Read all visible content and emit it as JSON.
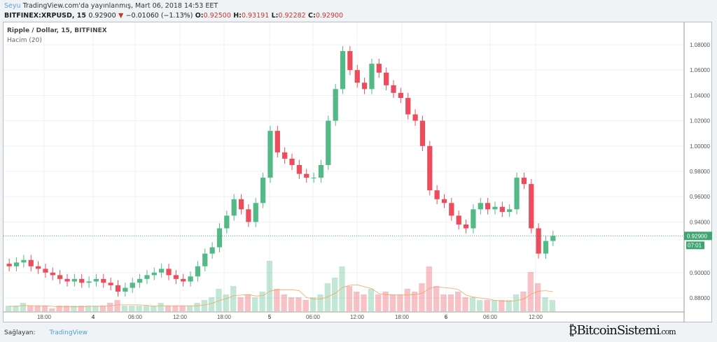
{
  "header": {
    "user": "Seyu",
    "published": "TradingView.com'da yayınlanmış, Mart 06, 2018 14:53 EET",
    "symbol": "BITFINEX:XRPUSD, 15",
    "last": "0.92900",
    "change": "−0.01060 (−1.13%)",
    "o_label": "O:",
    "o": "0.92500",
    "h_label": "H:",
    "h": "0.93191",
    "l_label": "L:",
    "l": "0.92282",
    "c_label": "C:",
    "c": "0.92900"
  },
  "legend": {
    "title": "Ripple / Dollar, 15, BITFINEX",
    "volume": "Hacim (20)"
  },
  "footer": {
    "provider": "Sağlayan:",
    "brand": "TradingView"
  },
  "watermark": {
    "text": "BitcoinSistemi",
    "sub": ".com"
  },
  "colors": {
    "up": "#53b987",
    "down": "#eb4d5c",
    "last_price": "#3da56f",
    "grid": "#eef0f3",
    "ma": "#f5a45a"
  },
  "chart_data": {
    "type": "candlestick",
    "yticks": [
      "1.08000",
      "1.06000",
      "1.04000",
      "1.02000",
      "1.00000",
      "0.98000",
      "0.96000",
      "0.94000",
      "0.90000",
      "0.88000"
    ],
    "ylim": [
      0.875,
      1.09
    ],
    "xticks": [
      "18:00",
      "4",
      "06:00",
      "12:00",
      "18:00",
      "5",
      "06:00",
      "12:00",
      "18:00",
      "6",
      "06:00",
      "12:00"
    ],
    "last_price": "0.92900",
    "countdown": "07:01",
    "hourly_close": [
      0.905,
      0.908,
      0.91,
      0.905,
      0.903,
      0.9,
      0.898,
      0.895,
      0.893,
      0.895,
      0.892,
      0.893,
      0.895,
      0.892,
      0.89,
      0.885,
      0.888,
      0.892,
      0.895,
      0.898,
      0.9,
      0.903,
      0.898,
      0.895,
      0.893,
      0.897,
      0.905,
      0.915,
      0.92,
      0.935,
      0.945,
      0.958,
      0.95,
      0.94,
      0.955,
      0.975,
      1.012,
      0.995,
      0.99,
      0.985,
      0.978,
      0.975,
      0.975,
      0.985,
      1.02,
      1.045,
      1.075,
      1.06,
      1.05,
      1.045,
      1.065,
      1.058,
      1.048,
      1.042,
      1.038,
      1.025,
      1.02,
      1.0,
      0.965,
      0.958,
      0.955,
      0.945,
      0.938,
      0.935,
      0.95,
      0.955,
      0.95,
      0.952,
      0.948,
      0.95,
      0.975,
      0.97,
      0.935,
      0.915,
      0.925,
      0.929
    ],
    "volume_relative": [
      2,
      2,
      3,
      2,
      2,
      2,
      1,
      2,
      2,
      2,
      2,
      2,
      2,
      2,
      3,
      4,
      2,
      2,
      2,
      2,
      2,
      3,
      2,
      2,
      2,
      2,
      3,
      4,
      5,
      8,
      6,
      9,
      5,
      6,
      5,
      7,
      18,
      8,
      6,
      5,
      5,
      4,
      5,
      6,
      10,
      12,
      16,
      9,
      7,
      6,
      8,
      6,
      7,
      6,
      6,
      8,
      7,
      10,
      16,
      9,
      6,
      6,
      7,
      5,
      5,
      4,
      4,
      4,
      4,
      4,
      6,
      7,
      14,
      10,
      5,
      4
    ]
  }
}
